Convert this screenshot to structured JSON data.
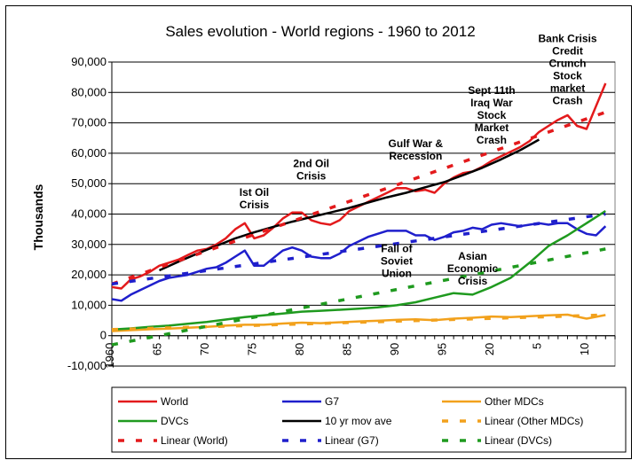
{
  "chart_data": {
    "type": "line",
    "title": "Sales evolution - World regions - 1960 to 2012",
    "ylabel": "Thousands",
    "xlabel": "",
    "ylim": [
      -10000,
      90000
    ],
    "yticks": [
      -10000,
      0,
      10000,
      20000,
      30000,
      40000,
      50000,
      60000,
      70000,
      80000,
      90000
    ],
    "ytick_labels": [
      "-10,000",
      "0",
      "10,000",
      "20,000",
      "30,000",
      "40,000",
      "50,000",
      "60,000",
      "70,000",
      "80,000",
      "90,000"
    ],
    "xlim": [
      1960,
      2013
    ],
    "xticks": [
      1960,
      1965,
      1970,
      1975,
      1980,
      1985,
      1990,
      1995,
      2000,
      2005,
      2010
    ],
    "xtick_labels": [
      "1960",
      "65",
      "70",
      "75",
      "80",
      "85",
      "90",
      "95",
      "20",
      "5",
      "10"
    ],
    "grid": true,
    "legend_position": "bottom",
    "series": [
      {
        "name": "World",
        "color": "#e31a1c",
        "style": "solid",
        "x": [
          1960,
          1961,
          1962,
          1963,
          1964,
          1965,
          1966,
          1967,
          1968,
          1969,
          1970,
          1971,
          1972,
          1973,
          1974,
          1975,
          1976,
          1977,
          1978,
          1979,
          1980,
          1981,
          1982,
          1983,
          1984,
          1985,
          1986,
          1987,
          1988,
          1989,
          1990,
          1991,
          1992,
          1993,
          1994,
          1995,
          1996,
          1997,
          1998,
          1999,
          2000,
          2001,
          2002,
          2003,
          2004,
          2005,
          2006,
          2007,
          2008,
          2009,
          2010,
          2011,
          2012
        ],
        "values": [
          16000,
          15500,
          18500,
          19500,
          21000,
          23000,
          24000,
          25000,
          26500,
          28000,
          28500,
          30000,
          32000,
          35000,
          37000,
          32000,
          33000,
          35500,
          38500,
          40500,
          40500,
          38000,
          37000,
          36500,
          38000,
          41000,
          42500,
          44000,
          45500,
          47000,
          48500,
          48500,
          47500,
          48000,
          47000,
          50000,
          52000,
          53500,
          54000,
          55500,
          57500,
          59000,
          60500,
          62000,
          64000,
          67000,
          69000,
          71000,
          72500,
          69000,
          68000,
          75500,
          83000
        ]
      },
      {
        "name": "G7",
        "color": "#1f1fcc",
        "style": "solid",
        "x": [
          1960,
          1961,
          1962,
          1963,
          1964,
          1965,
          1966,
          1967,
          1968,
          1969,
          1970,
          1971,
          1972,
          1973,
          1974,
          1975,
          1976,
          1977,
          1978,
          1979,
          1980,
          1981,
          1982,
          1983,
          1984,
          1985,
          1986,
          1987,
          1988,
          1989,
          1990,
          1991,
          1992,
          1993,
          1994,
          1995,
          1996,
          1997,
          1998,
          1999,
          2000,
          2001,
          2002,
          2003,
          2004,
          2005,
          2006,
          2007,
          2008,
          2009,
          2010,
          2011,
          2012
        ],
        "values": [
          12000,
          11500,
          13500,
          15000,
          16500,
          18000,
          19000,
          19500,
          20000,
          21000,
          22000,
          22500,
          24000,
          26000,
          28000,
          23000,
          23000,
          25500,
          28000,
          29000,
          28000,
          26000,
          25500,
          25500,
          27000,
          29500,
          31000,
          32500,
          33500,
          34500,
          34500,
          34500,
          33000,
          33000,
          31500,
          32500,
          34000,
          34500,
          35500,
          35000,
          36500,
          37000,
          36500,
          36000,
          36500,
          37000,
          36500,
          37000,
          37000,
          35000,
          33500,
          33000,
          36000
        ]
      },
      {
        "name": "Other MDCs",
        "color": "#f2a11c",
        "style": "solid",
        "x": [
          1960,
          1962,
          1964,
          1966,
          1968,
          1970,
          1972,
          1974,
          1976,
          1978,
          1980,
          1982,
          1984,
          1986,
          1988,
          1990,
          1992,
          1994,
          1996,
          1998,
          2000,
          2002,
          2004,
          2006,
          2008,
          2010,
          2012
        ],
        "values": [
          1500,
          1800,
          2100,
          2300,
          2600,
          2900,
          3300,
          3600,
          3600,
          4000,
          4300,
          4100,
          4400,
          4700,
          4900,
          5200,
          5400,
          5100,
          5600,
          5900,
          6300,
          6100,
          6400,
          6700,
          6900,
          5600,
          6800
        ]
      },
      {
        "name": "DVCs",
        "color": "#1f9a1f",
        "style": "solid",
        "x": [
          1960,
          1962,
          1964,
          1966,
          1968,
          1970,
          1972,
          1974,
          1976,
          1978,
          1980,
          1982,
          1984,
          1986,
          1988,
          1990,
          1992,
          1994,
          1996,
          1998,
          2000,
          2002,
          2004,
          2006,
          2008,
          2010,
          2012
        ],
        "values": [
          2000,
          2400,
          2900,
          3300,
          3900,
          4500,
          5300,
          6100,
          6700,
          7300,
          7900,
          8200,
          8500,
          8900,
          9300,
          10000,
          11000,
          12500,
          14000,
          13500,
          16000,
          19000,
          24000,
          29500,
          33000,
          37000,
          41000
        ]
      },
      {
        "name": "10 yr mov ave",
        "color": "#000000",
        "style": "solid",
        "x": [
          1965,
          1967,
          1969,
          1971,
          1973,
          1975,
          1977,
          1979,
          1981,
          1983,
          1985,
          1987,
          1989,
          1991,
          1993,
          1995,
          1997,
          1999,
          2001,
          2003,
          2005
        ],
        "values": [
          21500,
          24300,
          27000,
          29500,
          32000,
          34000,
          35800,
          37500,
          39000,
          40500,
          42000,
          43800,
          45500,
          47000,
          48800,
          50500,
          52800,
          55200,
          58000,
          61000,
          64500
        ]
      },
      {
        "name": "Linear (Other MDCs)",
        "color": "#f2a11c",
        "style": "dashed",
        "x": [
          1960,
          2012
        ],
        "values": [
          2000,
          6800
        ]
      },
      {
        "name": "Linear (World)",
        "color": "#e31a1c",
        "style": "dashed",
        "x": [
          1960,
          2012
        ],
        "values": [
          17000,
          73500
        ]
      },
      {
        "name": "Linear (G7)",
        "color": "#1f1fcc",
        "style": "dashed",
        "x": [
          1960,
          2012
        ],
        "values": [
          17000,
          40000
        ]
      },
      {
        "name": "Linear (DVCs)",
        "color": "#1f9a1f",
        "style": "dashed",
        "x": [
          1960,
          2012
        ],
        "values": [
          -3000,
          28500
        ]
      }
    ],
    "annotations": [
      {
        "lines": [
          "Ist Oil",
          "Crisis"
        ],
        "x": 1975,
        "y": 46000
      },
      {
        "lines": [
          "2nd Oil",
          "Crisis"
        ],
        "x": 1981,
        "y": 55500
      },
      {
        "lines": [
          "Gulf War &",
          "Recession"
        ],
        "x": 1992,
        "y": 62000
      },
      {
        "lines": [
          "Sept 11th",
          "Iraq War",
          "Stock",
          "Market",
          "Crash"
        ],
        "x": 2000,
        "y": 79500
      },
      {
        "lines": [
          "Bank Crisis",
          "Credit",
          "Crunch",
          "Stock",
          "market",
          "Crash"
        ],
        "x": 2008,
        "y": 96500
      },
      {
        "lines": [
          "Fall of",
          "Soviet",
          "Union"
        ],
        "x": 1990,
        "y": 27500
      },
      {
        "lines": [
          "Asian",
          "Economic",
          "Crisis"
        ],
        "x": 1998,
        "y": 25000
      }
    ],
    "legend_order": [
      "World",
      "G7",
      "Other MDCs",
      "DVCs",
      "10 yr mov ave",
      "Linear (Other MDCs)",
      "Linear (World)",
      "Linear (G7)",
      "Linear (DVCs)"
    ]
  }
}
